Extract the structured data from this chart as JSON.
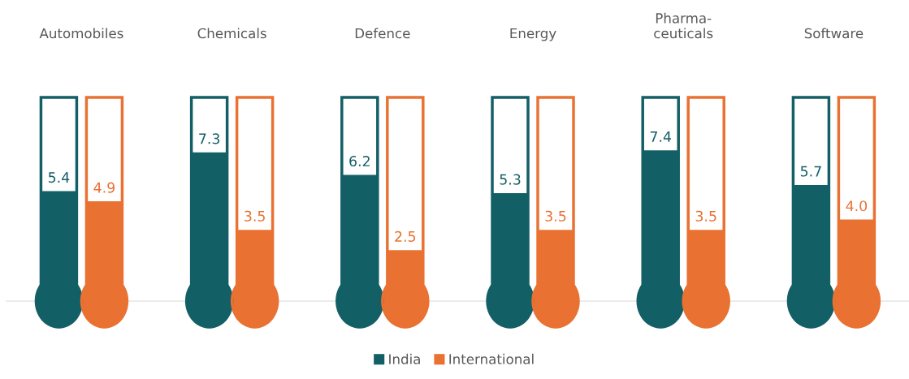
{
  "chart_data": {
    "type": "bar",
    "categories": [
      "Automobiles",
      "Chemicals",
      "Defence",
      "Energy",
      "Pharma-\nceuticals",
      "Software"
    ],
    "series": [
      {
        "name": "India",
        "color": "#135f66",
        "values": [
          5.4,
          7.3,
          6.2,
          5.3,
          7.4,
          5.7
        ]
      },
      {
        "name": "International",
        "color": "#e97132",
        "values": [
          4.9,
          3.5,
          2.5,
          3.5,
          3.5,
          4.0
        ],
        "value_labels": [
          "4.9",
          "3.5",
          "2.5",
          "3.5",
          "3.5",
          "4.0"
        ]
      }
    ],
    "data_labels": true,
    "legend": "bottom",
    "grid": false,
    "tick_labels": "x"
  }
}
